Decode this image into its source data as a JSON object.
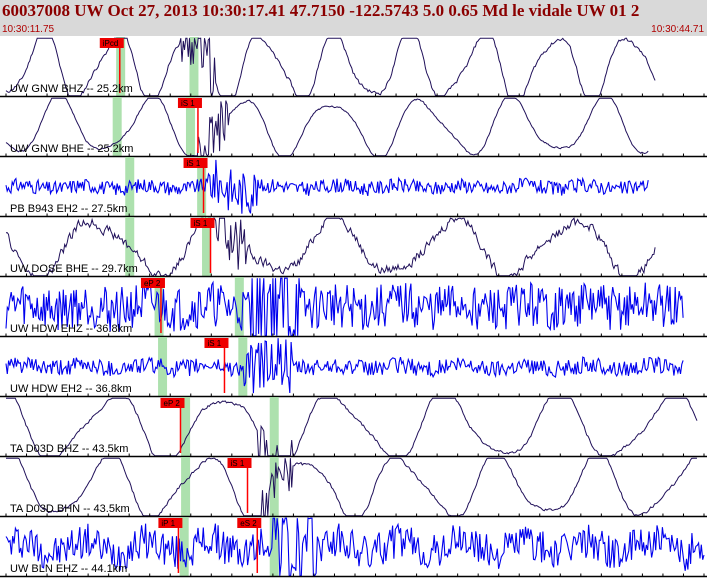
{
  "header": {
    "title": "60037008 UW Oct 27, 2013 10:30:17.41    47.7150 -122.5743  5.0 0.65 Md le vidale UW 01    2",
    "start_time": "10:30:11.75",
    "end_time": "10:30:44.71"
  },
  "colors": {
    "header_bg": "#d9d9d9",
    "title_text": "#8b0000",
    "time_text": "#b00000",
    "broadband_trace": "#20105a",
    "short_period_trace": "#0000ee",
    "pick_marker": "#ff0000",
    "pick_tag": "#ee0000",
    "predicted_window": "#9fdca0"
  },
  "traces": [
    {
      "id": "gnw-bhz",
      "label": "UW GNW BHZ -- 25.2km",
      "type": "broadband",
      "picks": [
        {
          "label": "iPcd",
          "time": 0.163
        }
      ],
      "predicted_windows": [
        0.165,
        0.27
      ],
      "waveform": {
        "kind": "lp",
        "period": 0.105,
        "amp": 0.55,
        "noise": 0.04,
        "onset": 0.25,
        "end": 0.93,
        "seed": 11
      }
    },
    {
      "id": "gnw-bhe",
      "label": "UW GNW BHE -- 25.2km",
      "type": "broadband",
      "picks": [
        {
          "label": "iS 1",
          "time": 0.275
        }
      ],
      "predicted_windows": [
        0.16,
        0.265
      ],
      "waveform": {
        "kind": "lp",
        "period": 0.13,
        "amp": 0.45,
        "noise": 0.02,
        "onset": 0.27,
        "end": 0.92,
        "seed": 23
      }
    },
    {
      "id": "pb-b943-eh2",
      "label": "PB B943 EH2 -- 27.5km",
      "type": "short-period",
      "picks": [
        {
          "label": "iS 1",
          "time": 0.283
        }
      ],
      "predicted_windows": [
        0.178,
        0.281
      ],
      "waveform": {
        "kind": "noise",
        "period": 0.02,
        "amp": 0.1,
        "noise": 0.12,
        "onset": 0.29,
        "end": 0.92,
        "seed": 31
      }
    },
    {
      "id": "uw-dose-bhe",
      "label": "UW DOSE BHE -- 29.7km",
      "type": "broadband",
      "picks": [
        {
          "label": "iS 1",
          "time": 0.293
        }
      ],
      "predicted_windows": [
        0.178,
        0.288
      ],
      "waveform": {
        "kind": "lp",
        "period": 0.17,
        "amp": 0.45,
        "noise": 0.1,
        "onset": 0.3,
        "end": 0.93,
        "seed": 47
      }
    },
    {
      "id": "uw-hdw-ehz",
      "label": "UW HDW EHZ -- 36.8km",
      "type": "short-period",
      "picks": [
        {
          "label": "eP 2",
          "time": 0.222
        }
      ],
      "predicted_windows": [
        0.22,
        0.335
      ],
      "waveform": {
        "kind": "noise",
        "period": 0.02,
        "amp": 0.15,
        "noise": 0.38,
        "onset": 0.35,
        "end": 0.97,
        "seed": 59
      }
    },
    {
      "id": "uw-hdw-eh2",
      "label": "UW HDW EH2 -- 36.8km",
      "type": "short-period",
      "picks": [
        {
          "label": "iS 1",
          "time": 0.313
        }
      ],
      "predicted_windows": [
        0.225,
        0.34
      ],
      "waveform": {
        "kind": "noise",
        "period": 0.02,
        "amp": 0.1,
        "noise": 0.14,
        "onset": 0.34,
        "end": 0.97,
        "seed": 61
      }
    },
    {
      "id": "ta-d03d-bhz",
      "label": "TA D03D BHZ -- 43.5km",
      "type": "broadband",
      "picks": [
        {
          "label": "eP 2",
          "time": 0.25
        }
      ],
      "predicted_windows": [
        0.258,
        0.385
      ],
      "waveform": {
        "kind": "lp",
        "period": 0.16,
        "amp": 0.55,
        "noise": 0.03,
        "onset": 0.36,
        "end": 0.99,
        "seed": 71
      }
    },
    {
      "id": "ta-d03d-bhn",
      "label": "TA D03D BHN -- 43.5km",
      "type": "broadband",
      "picks": [
        {
          "label": "iS 1",
          "time": 0.346
        }
      ],
      "predicted_windows": [
        0.258,
        0.385
      ],
      "waveform": {
        "kind": "lp",
        "period": 0.14,
        "amp": 0.5,
        "noise": 0.03,
        "onset": 0.36,
        "end": 0.99,
        "seed": 83
      }
    },
    {
      "id": "uw-bln-ehz",
      "label": "UW BLN EHZ -- 44.1km",
      "type": "short-period",
      "picks": [
        {
          "label": "iP 1",
          "time": 0.247
        },
        {
          "label": "eS 2",
          "time": 0.36
        }
      ],
      "predicted_windows": [
        0.256,
        0.385
      ],
      "waveform": {
        "kind": "noise",
        "period": 0.02,
        "amp": 0.35,
        "noise": 0.3,
        "onset": 0.38,
        "end": 1.0,
        "seed": 97
      }
    }
  ]
}
